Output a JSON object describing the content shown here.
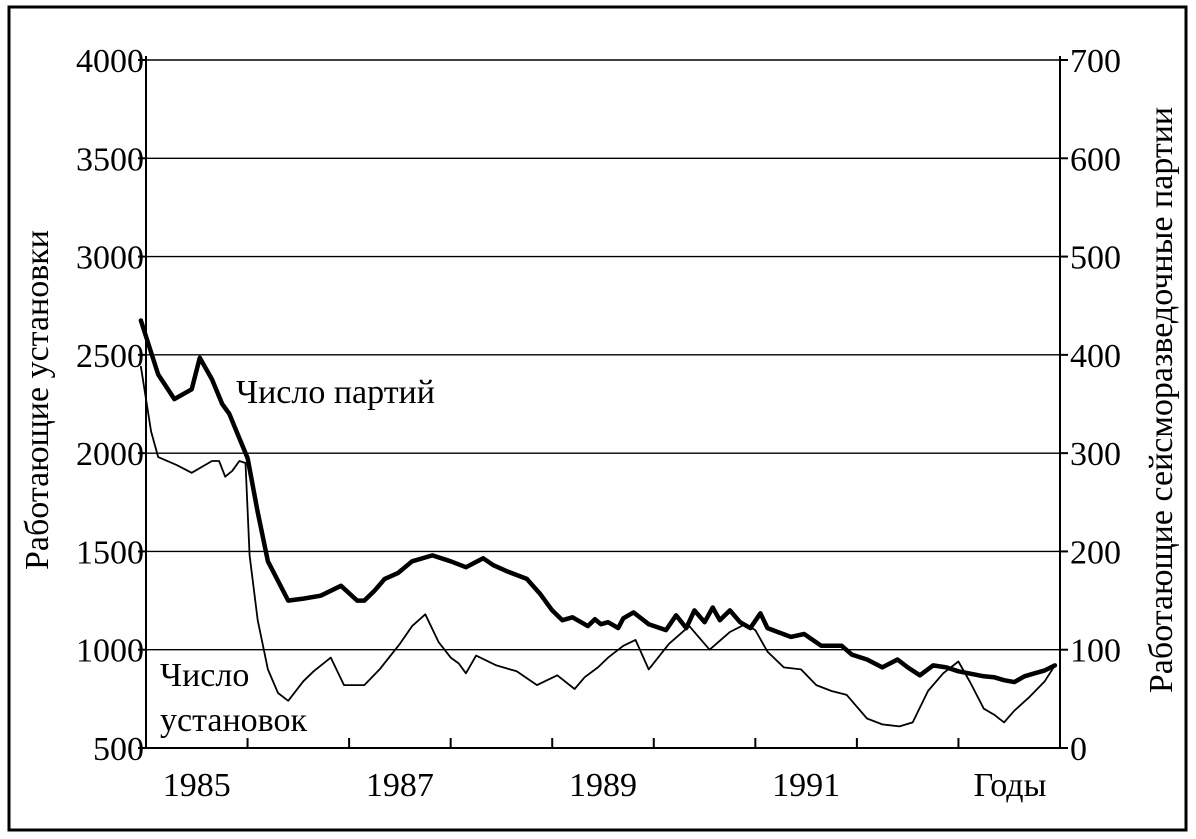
{
  "chart_data": {
    "type": "line",
    "xlabel": "Годы",
    "x_tick_labels": [
      "1985",
      "1987",
      "1989",
      "1991"
    ],
    "x_tick_values": [
      1985,
      1987,
      1989,
      1991
    ],
    "xlim": [
      1984.5,
      1993.5
    ],
    "y_left": {
      "label": "Работающие установки",
      "ylim": [
        500,
        4000
      ],
      "ticks": [
        500,
        1000,
        1500,
        2000,
        2500,
        3000,
        3500,
        4000
      ]
    },
    "y_right": {
      "label": "Работающие сейсморазведочные партии",
      "ylim": [
        0,
        700
      ],
      "ticks": [
        0,
        100,
        200,
        300,
        400,
        500,
        600,
        700
      ]
    },
    "grid": "horizontal",
    "series": [
      {
        "name": "Число партий",
        "axis": "right",
        "stroke": "thick",
        "x": [
          1984.45,
          1984.62,
          1984.78,
          1984.95,
          1985.03,
          1985.15,
          1985.25,
          1985.32,
          1985.4,
          1985.5,
          1985.6,
          1985.7,
          1985.8,
          1985.9,
          1986.05,
          1986.22,
          1986.42,
          1986.58,
          1986.65,
          1986.75,
          1986.85,
          1986.98,
          1987.12,
          1987.32,
          1987.5,
          1987.65,
          1987.82,
          1987.92,
          1988.05,
          1988.25,
          1988.38,
          1988.5,
          1988.6,
          1988.7,
          1988.85,
          1988.92,
          1988.98,
          1989.05,
          1989.15,
          1989.2,
          1989.3,
          1989.45,
          1989.62,
          1989.72,
          1989.82,
          1989.9,
          1990.0,
          1990.08,
          1990.15,
          1990.25,
          1990.35,
          1990.45,
          1990.55,
          1990.62,
          1990.72,
          1990.85,
          1990.98,
          1991.15,
          1991.35,
          1991.45,
          1991.6,
          1991.75,
          1991.9,
          1992.0,
          1992.12,
          1992.25,
          1992.38,
          1992.5,
          1992.65,
          1992.75,
          1992.85,
          1992.95,
          1993.05,
          1993.15,
          1993.25,
          1993.35,
          1993.45
        ],
        "values": [
          435,
          380,
          355,
          365,
          397,
          375,
          350,
          340,
          320,
          295,
          240,
          190,
          170,
          150,
          152,
          155,
          165,
          150,
          150,
          160,
          172,
          178,
          190,
          196,
          190,
          184,
          193,
          186,
          180,
          172,
          157,
          140,
          130,
          133,
          124,
          131,
          126,
          128,
          122,
          132,
          138,
          126,
          120,
          135,
          122,
          140,
          128,
          143,
          130,
          140,
          128,
          122,
          137,
          122,
          118,
          113,
          116,
          104,
          104,
          95,
          90,
          82,
          90,
          82,
          74,
          84,
          82,
          78,
          75,
          73,
          72,
          69,
          67,
          73,
          76,
          79,
          84
        ]
      },
      {
        "name": "Число установок",
        "axis": "left",
        "stroke": "thin",
        "x": [
          1984.45,
          1984.55,
          1984.62,
          1984.8,
          1984.95,
          1985.05,
          1985.15,
          1985.22,
          1985.28,
          1985.35,
          1985.42,
          1985.48,
          1985.52,
          1985.6,
          1985.7,
          1985.8,
          1985.9,
          1986.05,
          1986.15,
          1986.32,
          1986.45,
          1986.65,
          1986.8,
          1987.0,
          1987.12,
          1987.25,
          1987.38,
          1987.5,
          1987.58,
          1987.65,
          1987.75,
          1987.95,
          1988.15,
          1988.35,
          1988.55,
          1988.72,
          1988.82,
          1988.95,
          1989.05,
          1989.2,
          1989.32,
          1989.45,
          1989.65,
          1989.85,
          1990.05,
          1990.25,
          1990.4,
          1990.5,
          1990.62,
          1990.78,
          1990.95,
          1991.1,
          1991.25,
          1991.4,
          1991.6,
          1991.75,
          1991.92,
          1992.05,
          1992.2,
          1992.35,
          1992.5,
          1992.62,
          1992.75,
          1992.85,
          1992.95,
          1993.05,
          1993.2,
          1993.35,
          1993.45
        ],
        "values": [
          2440,
          2110,
          1980,
          1940,
          1900,
          1930,
          1960,
          1960,
          1880,
          1910,
          1960,
          1950,
          1480,
          1150,
          900,
          780,
          740,
          840,
          890,
          960,
          820,
          820,
          900,
          1030,
          1120,
          1180,
          1040,
          960,
          930,
          880,
          970,
          920,
          890,
          820,
          870,
          800,
          860,
          910,
          960,
          1020,
          1050,
          900,
          1030,
          1120,
          1000,
          1090,
          1130,
          1100,
          990,
          910,
          900,
          820,
          790,
          770,
          650,
          620,
          610,
          630,
          790,
          880,
          940,
          830,
          700,
          670,
          630,
          690,
          760,
          840,
          920
        ]
      }
    ]
  },
  "labels": {
    "parties": "Число партий",
    "rigs_line1": "Число",
    "rigs_line2": "установок"
  }
}
